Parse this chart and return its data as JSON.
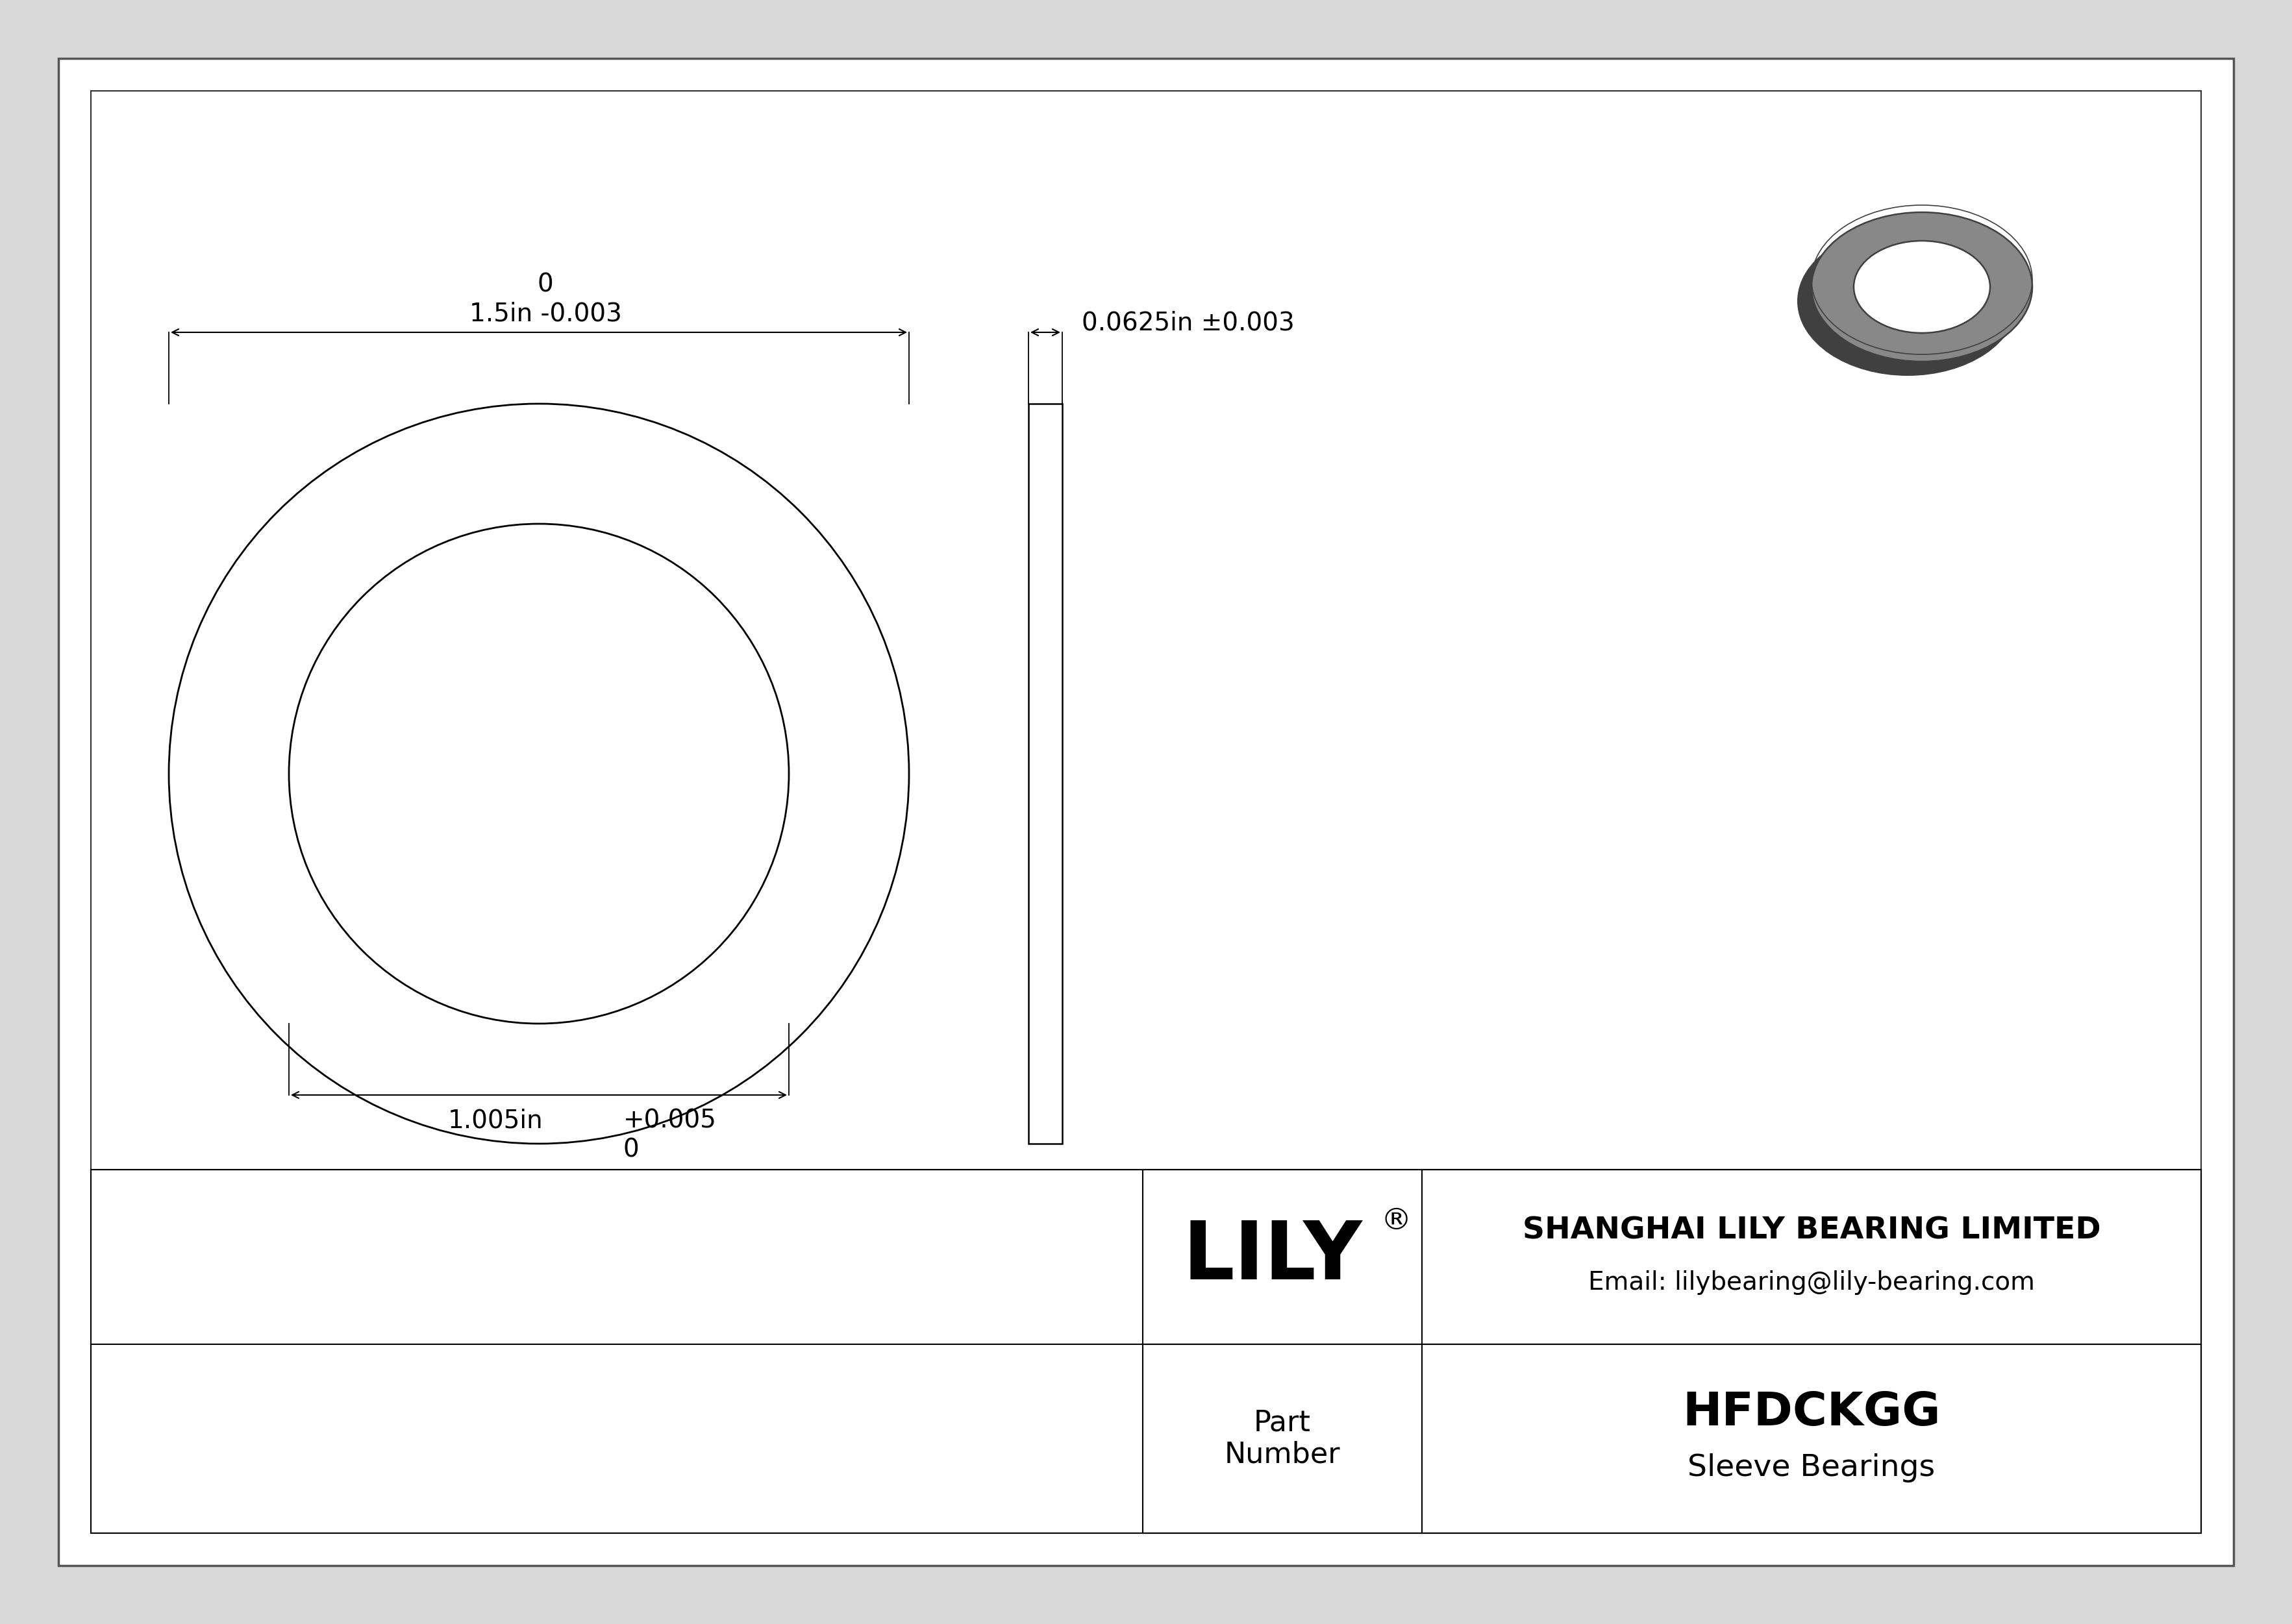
{
  "bg_color": "#d8d8d8",
  "drawing_bg": "#ffffff",
  "line_color": "#000000",
  "title": "HFDCKGG",
  "subtitle": "Sleeve Bearings",
  "company": "SHANGHAI LILY BEARING LIMITED",
  "email": "Email: lilybearing@lily-bearing.com",
  "part_label": "Part\nNumber",
  "registered": "®",
  "outer_diameter_label": "1.5in -0.003",
  "outer_diameter_top": "0",
  "inner_diameter_label": "1.005in",
  "inner_diameter_tol": "+0.005",
  "inner_diameter_tol2": "0",
  "thickness_label": "0.0625in ±0.003",
  "gray_color": "#888888",
  "dark_gray": "#404040",
  "mid_gray": "#666666"
}
